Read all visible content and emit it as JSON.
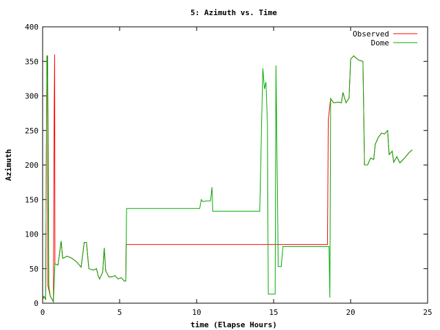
{
  "chart_data": {
    "type": "line",
    "title": "5: Azimuth vs. Time",
    "xlabel": "time (Elapse Hours)",
    "ylabel": "Azimuth",
    "xlim": [
      0,
      25
    ],
    "ylim": [
      0,
      400
    ],
    "x_ticks": [
      0,
      5,
      10,
      15,
      20,
      25
    ],
    "y_ticks": [
      0,
      50,
      100,
      150,
      200,
      250,
      300,
      350,
      400
    ],
    "grid": false,
    "legend_position": "top-right",
    "series": [
      {
        "name": "Observed",
        "color": "#ff0000",
        "points": [
          [
            0,
            5
          ],
          [
            0.1,
            10
          ],
          [
            0.2,
            5
          ],
          [
            0.25,
            270
          ],
          [
            0.28,
            358
          ],
          [
            0.32,
            358
          ],
          [
            0.35,
            25
          ],
          [
            0.5,
            10
          ],
          [
            0.7,
            2
          ],
          [
            0.75,
            285
          ],
          [
            0.78,
            360
          ],
          [
            0.8,
            57
          ],
          [
            1.0,
            55
          ],
          [
            1.2,
            90
          ],
          [
            1.3,
            65
          ],
          [
            1.6,
            68
          ],
          [
            1.9,
            65
          ],
          [
            2.2,
            60
          ],
          [
            2.5,
            52
          ],
          [
            2.7,
            88
          ],
          [
            2.85,
            88
          ],
          [
            3.0,
            50
          ],
          [
            3.3,
            48
          ],
          [
            3.5,
            50
          ],
          [
            3.6,
            40
          ],
          [
            3.7,
            35
          ],
          [
            3.9,
            45
          ],
          [
            4.0,
            80
          ],
          [
            4.1,
            47
          ],
          [
            4.3,
            38
          ],
          [
            4.5,
            38
          ],
          [
            4.7,
            40
          ],
          [
            4.9,
            35
          ],
          [
            5.1,
            37
          ],
          [
            5.3,
            32
          ],
          [
            5.4,
            32
          ],
          [
            5.42,
            85
          ],
          [
            18.5,
            85
          ],
          [
            18.55,
            265
          ],
          [
            18.7,
            296
          ],
          [
            18.9,
            290
          ],
          [
            19.2,
            291
          ],
          [
            19.4,
            290
          ],
          [
            19.5,
            305
          ],
          [
            19.7,
            290
          ],
          [
            19.9,
            297
          ],
          [
            20.0,
            353
          ],
          [
            20.2,
            358
          ],
          [
            20.5,
            352
          ],
          [
            20.8,
            350
          ],
          [
            20.9,
            200
          ],
          [
            21.1,
            200
          ],
          [
            21.3,
            210
          ],
          [
            21.5,
            208
          ],
          [
            21.6,
            230
          ],
          [
            21.8,
            240
          ],
          [
            22.0,
            246
          ],
          [
            22.2,
            245
          ],
          [
            22.4,
            250
          ],
          [
            22.5,
            215
          ],
          [
            22.7,
            220
          ],
          [
            22.8,
            204
          ],
          [
            23.0,
            212
          ],
          [
            23.2,
            203
          ],
          [
            23.5,
            210
          ],
          [
            23.8,
            218
          ],
          [
            24.0,
            222
          ]
        ]
      },
      {
        "name": "Dome",
        "color": "#00aa00",
        "points": [
          [
            0,
            8
          ],
          [
            0.1,
            10
          ],
          [
            0.2,
            5
          ],
          [
            0.25,
            270
          ],
          [
            0.28,
            358
          ],
          [
            0.32,
            358
          ],
          [
            0.35,
            275
          ],
          [
            0.4,
            25
          ],
          [
            0.5,
            10
          ],
          [
            0.7,
            2
          ],
          [
            0.8,
            57
          ],
          [
            1.0,
            55
          ],
          [
            1.2,
            90
          ],
          [
            1.3,
            65
          ],
          [
            1.6,
            68
          ],
          [
            1.9,
            65
          ],
          [
            2.2,
            60
          ],
          [
            2.5,
            52
          ],
          [
            2.7,
            88
          ],
          [
            2.85,
            88
          ],
          [
            3.0,
            50
          ],
          [
            3.3,
            48
          ],
          [
            3.5,
            50
          ],
          [
            3.6,
            40
          ],
          [
            3.7,
            35
          ],
          [
            3.9,
            45
          ],
          [
            4.0,
            80
          ],
          [
            4.1,
            47
          ],
          [
            4.3,
            38
          ],
          [
            4.5,
            38
          ],
          [
            4.7,
            40
          ],
          [
            4.9,
            35
          ],
          [
            5.1,
            37
          ],
          [
            5.3,
            32
          ],
          [
            5.4,
            32
          ],
          [
            5.45,
            137
          ],
          [
            10.2,
            137
          ],
          [
            10.3,
            150
          ],
          [
            10.4,
            147
          ],
          [
            10.6,
            148
          ],
          [
            10.9,
            148
          ],
          [
            11.0,
            168
          ],
          [
            11.05,
            133
          ],
          [
            13.9,
            133
          ],
          [
            14.1,
            133
          ],
          [
            14.3,
            340
          ],
          [
            14.4,
            310
          ],
          [
            14.5,
            320
          ],
          [
            14.6,
            260
          ],
          [
            14.65,
            13
          ],
          [
            15.1,
            13
          ],
          [
            15.15,
            344
          ],
          [
            15.3,
            53
          ],
          [
            15.5,
            53
          ],
          [
            15.6,
            82
          ],
          [
            18.6,
            82
          ],
          [
            18.65,
            8
          ],
          [
            18.7,
            296
          ],
          [
            18.9,
            290
          ],
          [
            19.2,
            291
          ],
          [
            19.4,
            290
          ],
          [
            19.5,
            305
          ],
          [
            19.7,
            290
          ],
          [
            19.9,
            297
          ],
          [
            20.0,
            353
          ],
          [
            20.2,
            358
          ],
          [
            20.5,
            352
          ],
          [
            20.8,
            350
          ],
          [
            20.9,
            200
          ],
          [
            21.1,
            200
          ],
          [
            21.3,
            210
          ],
          [
            21.5,
            208
          ],
          [
            21.6,
            230
          ],
          [
            21.8,
            240
          ],
          [
            22.0,
            246
          ],
          [
            22.2,
            245
          ],
          [
            22.4,
            250
          ],
          [
            22.5,
            215
          ],
          [
            22.7,
            220
          ],
          [
            22.8,
            204
          ],
          [
            23.0,
            212
          ],
          [
            23.2,
            203
          ],
          [
            23.5,
            210
          ],
          [
            23.8,
            218
          ],
          [
            24.0,
            222
          ]
        ]
      }
    ]
  }
}
